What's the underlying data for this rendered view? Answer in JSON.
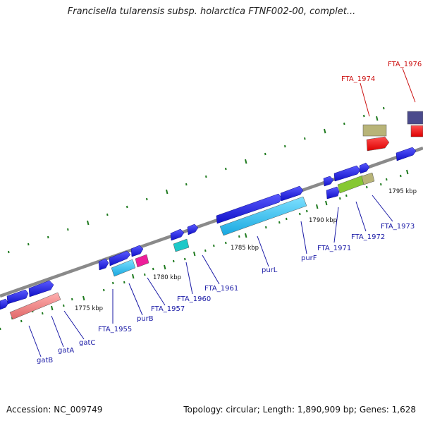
{
  "title": "Francisella tularensis subsp. holarctica FTNF002-00, complet...",
  "footer": {
    "accession": "Accession: NC_009749",
    "summary": "Topology: circular; Length: 1,890,909 bp; Genes: 1,628"
  },
  "ticks": [
    "1775 kbp",
    "1780 kbp",
    "1785 kbp",
    "1790 kbp",
    "1795 kbp"
  ],
  "gene_labels": {
    "blue": [
      "gatB",
      "gatA",
      "gatC",
      "FTA_1955",
      "purB",
      "FTA_1957",
      "FTA_1960",
      "FTA_1961",
      "purL",
      "purF",
      "FTA_1971",
      "FTA_1972",
      "FTA_1973"
    ],
    "red": [
      "FTA_1974",
      "FTA_1976"
    ]
  },
  "colors": {
    "backbone": "#8a8a8a",
    "blue_gene": "#1f1fe0",
    "light_blue_gene": "#22b8ee",
    "salmon_gene": "#f07f80",
    "magenta_gene": "#ee1e9a",
    "cyan_gene": "#1ec8c8",
    "olive_gene": "#b8b478",
    "green_gene": "#86c832",
    "red_gene": "#ee1111",
    "purple_gene": "#4a4a8c",
    "tick": "#1e7a1e",
    "label_blue": "#1a1aa6",
    "label_red": "#cc1111"
  }
}
